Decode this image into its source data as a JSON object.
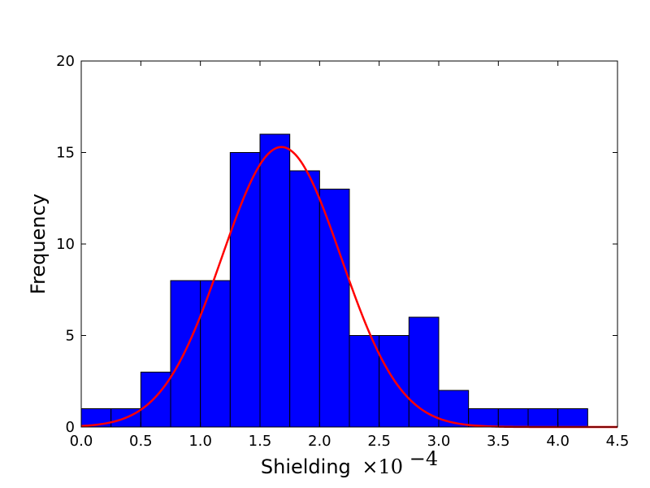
{
  "chart_data": {
    "type": "bar",
    "title": "",
    "xlabel": "Shielding",
    "xlabel_multiplier": "×10",
    "xlabel_exponent": "−4",
    "ylabel": "Frequency",
    "xlim": [
      0.0,
      4.5
    ],
    "ylim": [
      0,
      20
    ],
    "grid": false,
    "x_ticks": [
      "0.0",
      "0.5",
      "1.0",
      "1.5",
      "2.0",
      "2.5",
      "3.0",
      "3.5",
      "4.0",
      "4.5"
    ],
    "y_ticks": [
      "0",
      "5",
      "10",
      "15",
      "20"
    ],
    "bin_width": 0.25,
    "bins": [
      {
        "start": 0.0,
        "count": 1
      },
      {
        "start": 0.25,
        "count": 1
      },
      {
        "start": 0.5,
        "count": 3
      },
      {
        "start": 0.75,
        "count": 8
      },
      {
        "start": 1.0,
        "count": 8
      },
      {
        "start": 1.25,
        "count": 15
      },
      {
        "start": 1.5,
        "count": 16
      },
      {
        "start": 1.75,
        "count": 14
      },
      {
        "start": 2.0,
        "count": 13
      },
      {
        "start": 2.25,
        "count": 5
      },
      {
        "start": 2.5,
        "count": 5
      },
      {
        "start": 2.75,
        "count": 6
      },
      {
        "start": 3.0,
        "count": 2
      },
      {
        "start": 3.25,
        "count": 1
      },
      {
        "start": 3.5,
        "count": 1
      },
      {
        "start": 3.75,
        "count": 1
      },
      {
        "start": 4.0,
        "count": 1
      }
    ],
    "fit_curve": {
      "type": "gaussian",
      "peak": 15.3,
      "mean": 1.68,
      "sd": 0.5
    },
    "colors": {
      "bar_fill": "#0000ff",
      "bar_edge": "#000000",
      "curve": "#ff0000"
    }
  }
}
